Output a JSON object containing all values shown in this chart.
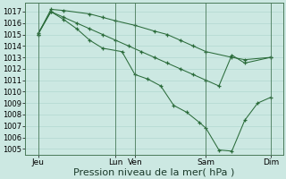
{
  "bg_color": "#cce8e2",
  "grid_color": "#aad4cc",
  "line_color": "#2a6b3a",
  "spine_color": "#4a7a5a",
  "xlabel": "Pression niveau de la mer( hPa )",
  "xlabel_fontsize": 8.0,
  "ylim": [
    1004.5,
    1017.8
  ],
  "yticks": [
    1005,
    1006,
    1007,
    1008,
    1009,
    1010,
    1011,
    1012,
    1013,
    1014,
    1015,
    1016,
    1017
  ],
  "ytick_fontsize": 6.0,
  "xlim": [
    0,
    20
  ],
  "xtick_positions": [
    1,
    7,
    8.5,
    14,
    19
  ],
  "xtick_labels": [
    "Jeu",
    "Lun",
    "Ven",
    "Sam",
    "Dim"
  ],
  "xtick_fontsize": 6.5,
  "vlines": [
    1,
    7,
    8.5,
    14,
    19
  ],
  "series1_x": [
    1,
    2,
    3,
    5,
    6,
    7,
    8.5,
    10,
    11,
    12,
    13,
    14,
    16,
    17,
    19
  ],
  "series1_y": [
    1015.0,
    1017.2,
    1017.1,
    1016.8,
    1016.5,
    1016.2,
    1015.8,
    1015.3,
    1015.0,
    1014.5,
    1014.0,
    1013.5,
    1013.0,
    1012.8,
    1013.0
  ],
  "series2_x": [
    1,
    2,
    3,
    4,
    5,
    6,
    7.5,
    8.5,
    9.5,
    10.5,
    11.5,
    12.5,
    13.5,
    14,
    15,
    16,
    17,
    18,
    19
  ],
  "series2_y": [
    1015.1,
    1017.0,
    1016.3,
    1015.5,
    1014.5,
    1013.8,
    1013.5,
    1011.5,
    1011.1,
    1010.5,
    1008.8,
    1008.2,
    1007.3,
    1006.8,
    1004.9,
    1004.8,
    1007.5,
    1009.0,
    1009.5
  ],
  "series3_x": [
    1,
    2,
    3,
    4,
    5,
    6,
    7,
    8,
    9,
    10,
    11,
    12,
    13,
    14,
    15,
    16,
    17,
    19
  ],
  "series3_y": [
    1015.0,
    1017.0,
    1016.5,
    1016.0,
    1015.5,
    1015.0,
    1014.5,
    1014.0,
    1013.5,
    1013.0,
    1012.5,
    1012.0,
    1011.5,
    1011.0,
    1010.5,
    1013.2,
    1012.5,
    1013.0
  ]
}
